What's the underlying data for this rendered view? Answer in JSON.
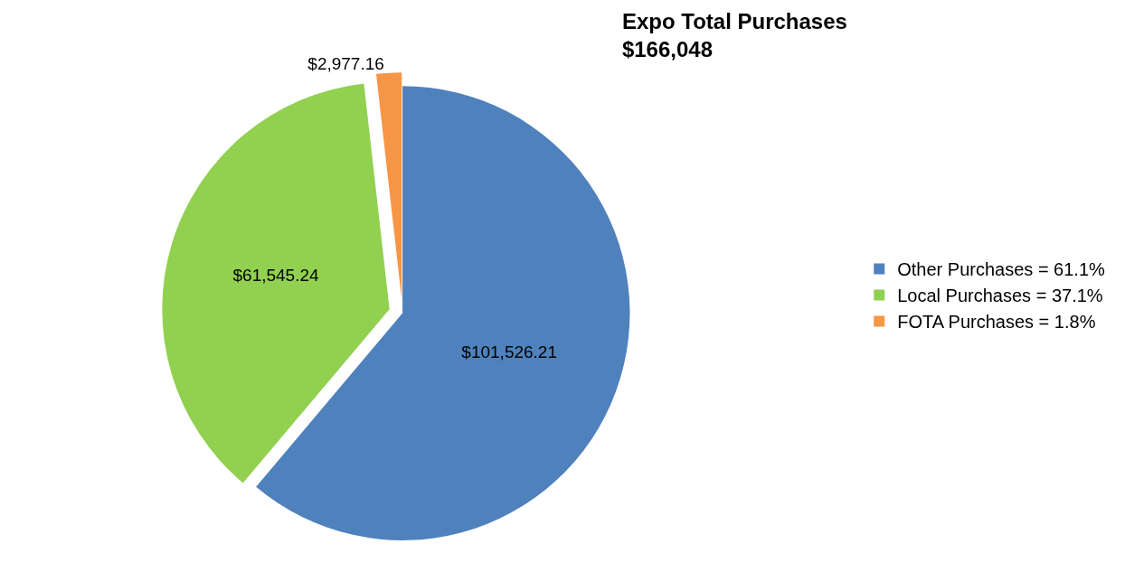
{
  "chart_data": {
    "type": "pie",
    "title": "Expo Total Purchases",
    "subtitle": "$166,048",
    "categories": [
      "Other Purchases = 61.1%",
      "Local Purchases = 37.1%",
      "FOTA Purchases = 1.8%"
    ],
    "values": [
      101526.21,
      61545.24,
      2977.16
    ],
    "value_labels": [
      "$101,526.21",
      "$61,545.24",
      "$2,977.16"
    ],
    "colors": [
      "#4f81bd",
      "#92d050",
      "#f79646"
    ],
    "legend": "right"
  }
}
